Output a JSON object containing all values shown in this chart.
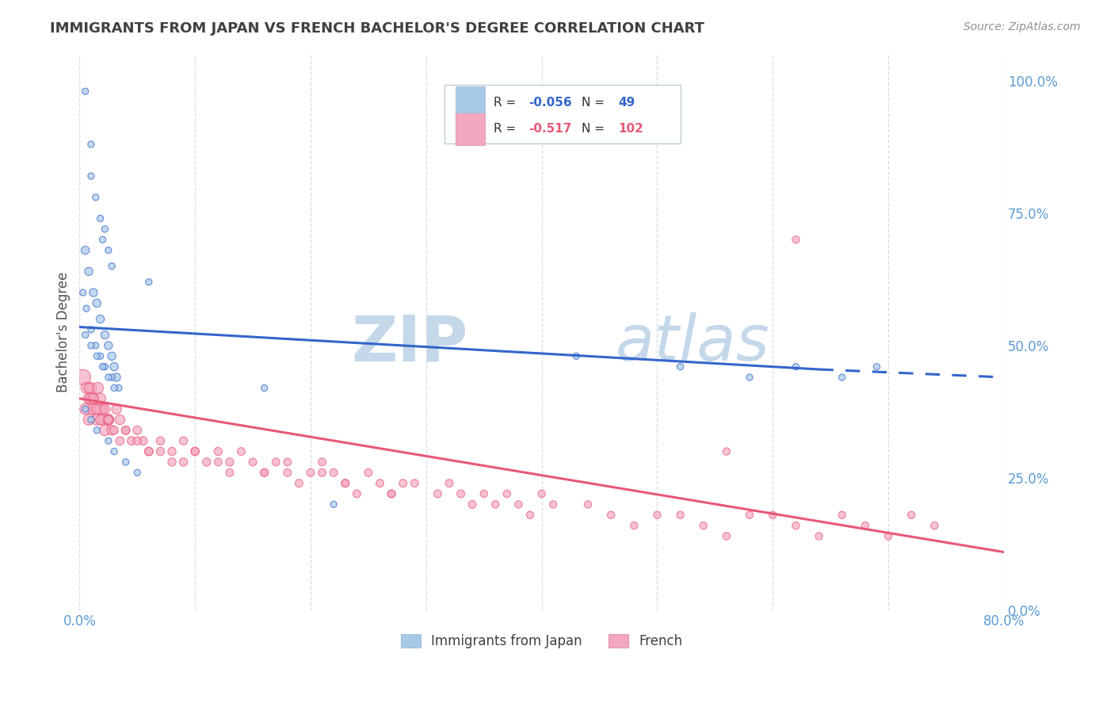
{
  "title": "IMMIGRANTS FROM JAPAN VS FRENCH BACHELOR'S DEGREE CORRELATION CHART",
  "source": "Source: ZipAtlas.com",
  "ylabel": "Bachelor's Degree",
  "legend_entries": [
    {
      "label": "Immigrants from Japan",
      "R": "-0.056",
      "N": "49",
      "box_color": "#a8c8e8"
    },
    {
      "label": "French",
      "R": "-0.517",
      "N": "102",
      "box_color": "#f4b0c0"
    }
  ],
  "watermark_line1": "ZIP",
  "watermark_line2": "atlas",
  "watermark_color": "#c5d8ea",
  "grid_color": "#d4dde8",
  "blue_scatter": {
    "x": [
      0.005,
      0.01,
      0.01,
      0.014,
      0.018,
      0.02,
      0.022,
      0.025,
      0.028,
      0.005,
      0.008,
      0.012,
      0.015,
      0.018,
      0.022,
      0.025,
      0.028,
      0.03,
      0.032,
      0.003,
      0.006,
      0.01,
      0.014,
      0.018,
      0.022,
      0.028,
      0.034,
      0.005,
      0.01,
      0.015,
      0.02,
      0.025,
      0.03,
      0.005,
      0.01,
      0.015,
      0.025,
      0.03,
      0.04,
      0.05,
      0.43,
      0.52,
      0.58,
      0.62,
      0.66,
      0.69,
      0.06,
      0.16,
      0.22
    ],
    "y": [
      0.98,
      0.88,
      0.82,
      0.78,
      0.74,
      0.7,
      0.72,
      0.68,
      0.65,
      0.68,
      0.64,
      0.6,
      0.58,
      0.55,
      0.52,
      0.5,
      0.48,
      0.46,
      0.44,
      0.6,
      0.57,
      0.53,
      0.5,
      0.48,
      0.46,
      0.44,
      0.42,
      0.52,
      0.5,
      0.48,
      0.46,
      0.44,
      0.42,
      0.38,
      0.36,
      0.34,
      0.32,
      0.3,
      0.28,
      0.26,
      0.48,
      0.46,
      0.44,
      0.46,
      0.44,
      0.46,
      0.62,
      0.42,
      0.2
    ],
    "sizes": [
      35,
      35,
      35,
      35,
      35,
      35,
      35,
      35,
      35,
      55,
      55,
      55,
      55,
      55,
      55,
      55,
      55,
      55,
      55,
      35,
      35,
      35,
      35,
      35,
      35,
      35,
      35,
      35,
      35,
      35,
      35,
      35,
      35,
      35,
      35,
      35,
      35,
      35,
      35,
      35,
      35,
      35,
      35,
      35,
      35,
      35,
      35,
      35,
      35
    ]
  },
  "pink_scatter": {
    "x": [
      0.003,
      0.006,
      0.008,
      0.01,
      0.012,
      0.014,
      0.016,
      0.018,
      0.02,
      0.005,
      0.008,
      0.01,
      0.012,
      0.015,
      0.018,
      0.02,
      0.022,
      0.025,
      0.008,
      0.012,
      0.015,
      0.018,
      0.022,
      0.025,
      0.028,
      0.032,
      0.035,
      0.025,
      0.03,
      0.035,
      0.04,
      0.045,
      0.05,
      0.055,
      0.06,
      0.04,
      0.05,
      0.06,
      0.07,
      0.08,
      0.09,
      0.1,
      0.07,
      0.08,
      0.09,
      0.1,
      0.11,
      0.12,
      0.13,
      0.12,
      0.13,
      0.14,
      0.15,
      0.16,
      0.17,
      0.18,
      0.19,
      0.16,
      0.18,
      0.2,
      0.21,
      0.22,
      0.23,
      0.24,
      0.21,
      0.23,
      0.25,
      0.26,
      0.27,
      0.28,
      0.27,
      0.29,
      0.31,
      0.32,
      0.33,
      0.34,
      0.35,
      0.36,
      0.37,
      0.38,
      0.39,
      0.4,
      0.41,
      0.44,
      0.46,
      0.48,
      0.5,
      0.52,
      0.54,
      0.56,
      0.58,
      0.6,
      0.62,
      0.64,
      0.66,
      0.68,
      0.7,
      0.56,
      0.62,
      0.72,
      0.74
    ],
    "y": [
      0.44,
      0.42,
      0.4,
      0.42,
      0.4,
      0.38,
      0.42,
      0.4,
      0.38,
      0.38,
      0.36,
      0.4,
      0.38,
      0.36,
      0.38,
      0.36,
      0.34,
      0.36,
      0.42,
      0.4,
      0.38,
      0.36,
      0.38,
      0.36,
      0.34,
      0.38,
      0.36,
      0.36,
      0.34,
      0.32,
      0.34,
      0.32,
      0.34,
      0.32,
      0.3,
      0.34,
      0.32,
      0.3,
      0.32,
      0.3,
      0.28,
      0.3,
      0.3,
      0.28,
      0.32,
      0.3,
      0.28,
      0.3,
      0.28,
      0.28,
      0.26,
      0.3,
      0.28,
      0.26,
      0.28,
      0.26,
      0.24,
      0.26,
      0.28,
      0.26,
      0.28,
      0.26,
      0.24,
      0.22,
      0.26,
      0.24,
      0.26,
      0.24,
      0.22,
      0.24,
      0.22,
      0.24,
      0.22,
      0.24,
      0.22,
      0.2,
      0.22,
      0.2,
      0.22,
      0.2,
      0.18,
      0.22,
      0.2,
      0.2,
      0.18,
      0.16,
      0.18,
      0.18,
      0.16,
      0.14,
      0.18,
      0.18,
      0.16,
      0.14,
      0.18,
      0.16,
      0.14,
      0.3,
      0.7,
      0.18,
      0.16
    ],
    "sizes": [
      200,
      100,
      100,
      100,
      100,
      100,
      100,
      100,
      100,
      100,
      100,
      100,
      100,
      100,
      100,
      100,
      100,
      100,
      80,
      80,
      80,
      80,
      80,
      80,
      80,
      80,
      80,
      60,
      60,
      60,
      60,
      60,
      60,
      60,
      60,
      55,
      55,
      55,
      55,
      55,
      55,
      55,
      55,
      55,
      55,
      55,
      55,
      55,
      55,
      50,
      50,
      50,
      50,
      50,
      50,
      50,
      50,
      50,
      50,
      50,
      50,
      50,
      50,
      50,
      50,
      50,
      50,
      50,
      50,
      50,
      50,
      50,
      50,
      50,
      50,
      50,
      45,
      45,
      45,
      45,
      45,
      45,
      45,
      45,
      45,
      45,
      45,
      45,
      45,
      45,
      45,
      45,
      45,
      45,
      45,
      45,
      45,
      45,
      45,
      45,
      45
    ]
  },
  "blue_trendline_solid": {
    "x": [
      0.0,
      0.64
    ],
    "y": [
      0.535,
      0.455
    ]
  },
  "blue_trendline_dashed": {
    "x": [
      0.64,
      0.8
    ],
    "y": [
      0.455,
      0.44
    ]
  },
  "pink_trendline": {
    "x": [
      0.0,
      0.8
    ],
    "y": [
      0.4,
      0.11
    ]
  },
  "xlim": [
    0.0,
    0.8
  ],
  "ylim": [
    0.0,
    1.05
  ],
  "yticks_right": [
    0.0,
    0.25,
    0.5,
    0.75,
    1.0
  ],
  "ytick_right_labels": [
    "0.0%",
    "25.0%",
    "50.0%",
    "75.0%",
    "100.0%"
  ],
  "blue_color": "#a8c8e8",
  "pink_color": "#f4a8c0",
  "blue_line_color": "#3366cc",
  "pink_line_color": "#e85878",
  "right_axis_color": "#5b9bd5",
  "title_color": "#404040",
  "source_color": "#909090"
}
